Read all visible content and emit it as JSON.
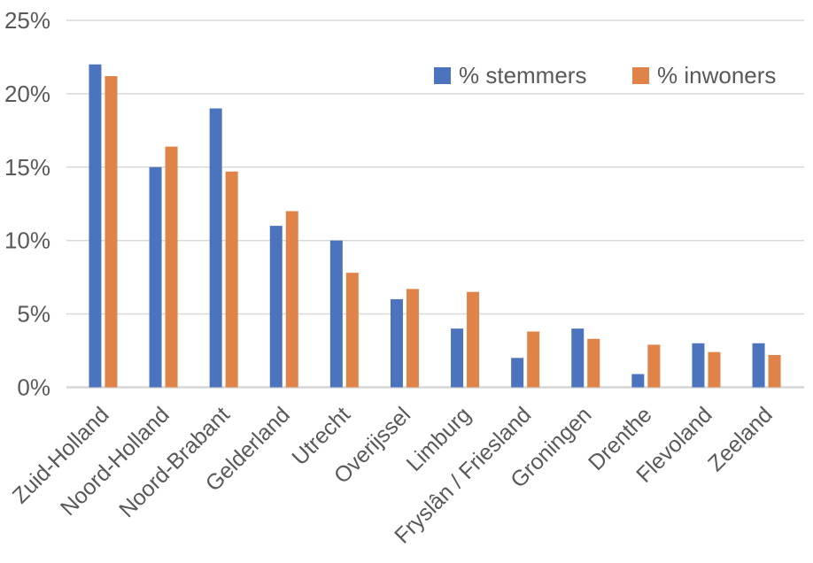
{
  "chart_data": {
    "type": "bar",
    "title": "",
    "categories": [
      "Zuid-Holland",
      "Noord-Holland",
      "Noord-Brabant",
      "Gelderland",
      "Utrecht",
      "Overijssel",
      "Limburg",
      "Fryslân / Friesland",
      "Groningen",
      "Drenthe",
      "Flevoland",
      "Zeeland"
    ],
    "series": [
      {
        "name": "% stemmers",
        "color": "#4C74BE",
        "values": [
          22,
          15,
          19,
          11,
          10,
          6,
          4,
          2,
          4,
          0.9,
          3,
          3
        ]
      },
      {
        "name": "% inwoners",
        "color": "#E08348",
        "values": [
          21.2,
          16.4,
          14.7,
          12,
          7.8,
          6.7,
          6.5,
          3.8,
          3.3,
          2.9,
          2.4,
          2.2
        ]
      }
    ],
    "xlabel": "",
    "ylabel": "",
    "ylim": [
      0,
      25
    ],
    "yticks": [
      0,
      5,
      10,
      15,
      20,
      25
    ],
    "ytick_labels": [
      "0%",
      "5%",
      "10%",
      "15%",
      "20%",
      "25%"
    ],
    "grid": "horizontal",
    "legend_position": "top-right",
    "legend": [
      "% stemmers",
      "% inwoners"
    ],
    "text_color": "#595959",
    "gridline_color": "#D9D9D9",
    "axis_line_color": "#D6D6D6"
  }
}
